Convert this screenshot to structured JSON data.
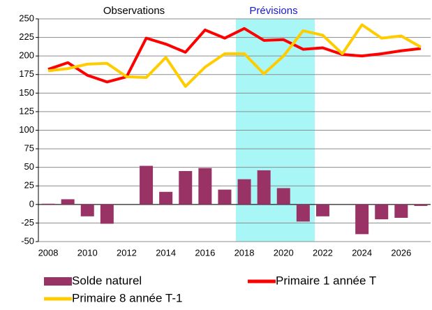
{
  "chart_data": {
    "type": "combo",
    "annotations": [
      "Observations",
      "Prévisions"
    ],
    "categories": [
      "2008",
      null,
      "2010",
      null,
      "2012",
      null,
      "2014",
      null,
      "2016",
      null,
      "2018",
      null,
      "2020",
      null,
      "2022",
      null,
      "2024",
      null,
      "2026",
      null
    ],
    "series": [
      {
        "name": "Solde naturel",
        "type": "bar",
        "color": "#993366",
        "values": [
          1,
          7,
          -16,
          -26,
          0,
          52,
          17,
          45,
          49,
          20,
          34,
          46,
          22,
          -23,
          -16,
          0,
          -40,
          -20,
          -18,
          -2
        ]
      },
      {
        "name": "Primaire 1 année T",
        "type": "line",
        "color": "#ff0000",
        "values": [
          182,
          191,
          174,
          165,
          172,
          224,
          216,
          205,
          235,
          224,
          237,
          221,
          222,
          209,
          211,
          202,
          200,
          203,
          207,
          210
        ]
      },
      {
        "name": "Primaire 8 année T-1",
        "type": "line",
        "color": "#ffcc00",
        "values": [
          180,
          183,
          189,
          190,
          172,
          171,
          198,
          159,
          185,
          203,
          203,
          176,
          200,
          234,
          228,
          203,
          242,
          224,
          227,
          212
        ]
      }
    ],
    "ylim": [
      -50,
      250
    ],
    "yticks": [
      -50,
      -25,
      0,
      25,
      50,
      75,
      100,
      125,
      150,
      175,
      200,
      225,
      250
    ],
    "grid": true
  }
}
